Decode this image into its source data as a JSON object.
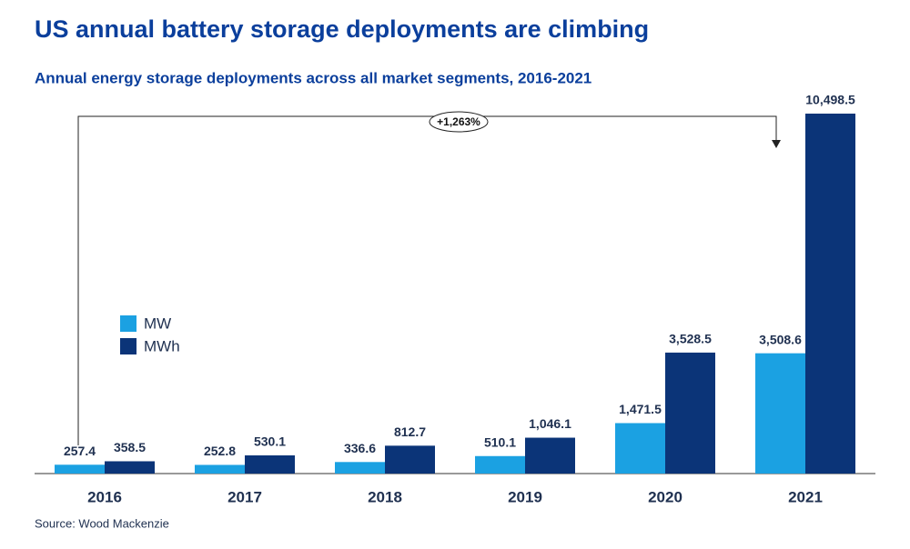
{
  "chart_data": {
    "type": "bar",
    "title": "US annual battery storage deployments are climbing",
    "subtitle": "Annual energy storage deployments across all market segments, 2016-2021",
    "source": "Source: Wood Mackenzie",
    "annotation": "+1,263%",
    "legend": "left",
    "categories": [
      "2016",
      "2017",
      "2018",
      "2019",
      "2020",
      "2021"
    ],
    "series": [
      {
        "name": "MW",
        "color": "#1ba1e2",
        "values": [
          257.4,
          252.8,
          336.6,
          510.1,
          1471.5,
          3508.6
        ],
        "value_labels": [
          "257.4",
          "252.8",
          "336.6",
          "510.1",
          "1,471.5",
          "3,508.6"
        ]
      },
      {
        "name": "MWh",
        "color": "#0b3478",
        "values": [
          358.5,
          530.1,
          812.7,
          1046.1,
          3528.5,
          10498.5
        ],
        "value_labels": [
          "358.5",
          "530.1",
          "812.7",
          "1,046.1",
          "3,528.5",
          "10,498.5"
        ]
      }
    ]
  }
}
